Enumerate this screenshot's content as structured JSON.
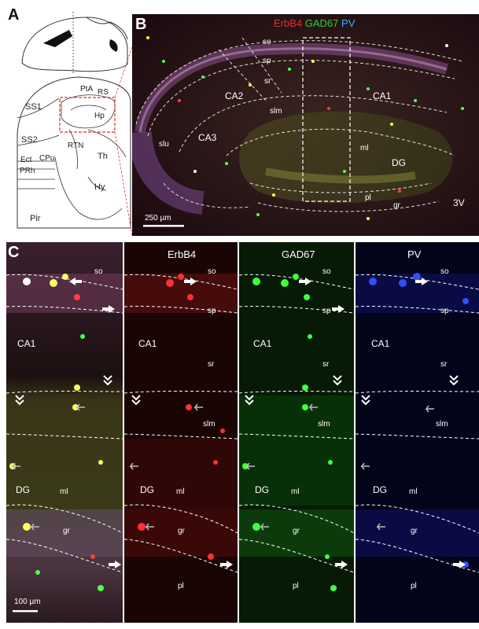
{
  "panelA": {
    "label": "A",
    "regions": [
      "PtA",
      "RS",
      "SS1",
      "Hp",
      "SS2",
      "RTN",
      "Ect",
      "CPu",
      "Th",
      "PRh",
      "Hy",
      "Pir"
    ]
  },
  "panelB": {
    "label": "B",
    "legend": {
      "erbb4": "ErbB4",
      "gad67": "GAD67",
      "pv": "PV"
    },
    "legend_colors": {
      "erbb4": "#e03030",
      "gad67": "#30d030",
      "pv": "#30b8ff"
    },
    "labels": {
      "so": "so",
      "sp": "sp",
      "sr": "sr",
      "slm": "slm",
      "ca2": "CA2",
      "ca1": "CA1",
      "ca3": "CA3",
      "slu": "slu",
      "ml": "ml",
      "dg": "DG",
      "pl": "pl",
      "gr": "gr",
      "v3": "3V"
    },
    "scalebar": "250 µm"
  },
  "panelC": {
    "label": "C",
    "channels": [
      {
        "key": "merge",
        "title": ""
      },
      {
        "key": "erbb4",
        "title": "ErbB4"
      },
      {
        "key": "gad67",
        "title": "GAD67"
      },
      {
        "key": "pv",
        "title": "PV"
      }
    ],
    "layers": {
      "so": "so",
      "sp": "sp",
      "ca1": "CA1",
      "sr": "sr",
      "slm": "slm",
      "dg": "DG",
      "ml": "ml",
      "gr": "gr",
      "pl": "pl"
    },
    "scalebar": "100 µm"
  }
}
